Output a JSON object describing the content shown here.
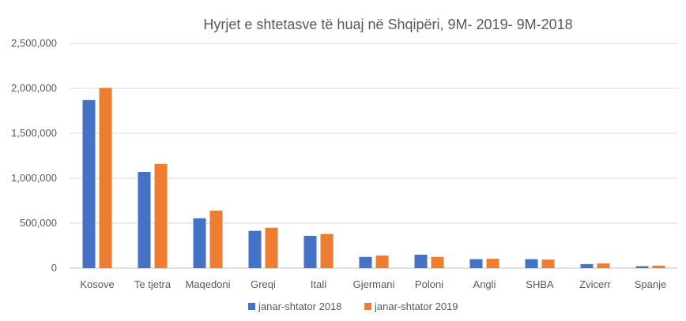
{
  "chart_data": {
    "type": "bar",
    "title": "Hyrjet e shtetasve të huaj në Shqipëri, 9M- 2019- 9M-2018",
    "xlabel": "",
    "ylabel": "",
    "categories": [
      "Kosove",
      "Te tjetra",
      "Maqedoni",
      "Greqi",
      "Itali",
      "Gjermani",
      "Poloni",
      "Angli",
      "SHBA",
      "Zvicerr",
      "Spanje"
    ],
    "series": [
      {
        "name": "janar-shtator 2018",
        "color": "#4472c4",
        "values": [
          1870000,
          1070000,
          555000,
          415000,
          360000,
          125000,
          150000,
          100000,
          100000,
          45000,
          22000
        ]
      },
      {
        "name": "janar-shtator 2019",
        "color": "#ed7d31",
        "values": [
          2005000,
          1160000,
          640000,
          450000,
          380000,
          140000,
          125000,
          105000,
          95000,
          52000,
          28000
        ]
      }
    ],
    "ylim": [
      0,
      2500000
    ],
    "yticks": [
      0,
      500000,
      1000000,
      1500000,
      2000000,
      2500000
    ],
    "ytick_labels": [
      "0",
      "500,000",
      "1,000,000",
      "1,500,000",
      "2,000,000",
      "2,500,000"
    ],
    "grid": true,
    "legend_position": "bottom"
  }
}
